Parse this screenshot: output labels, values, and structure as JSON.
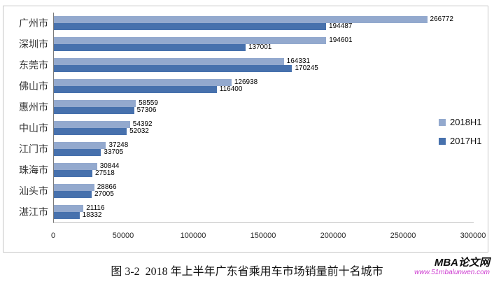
{
  "chart_data": {
    "type": "bar",
    "orientation": "horizontal",
    "categories": [
      "广州市",
      "深圳市",
      "东莞市",
      "佛山市",
      "惠州市",
      "中山市",
      "江门市",
      "珠海市",
      "汕头市",
      "湛江市"
    ],
    "series": [
      {
        "name": "2018H1",
        "color": "#93A9CE",
        "values": [
          266772,
          194601,
          164331,
          126938,
          58559,
          54392,
          37248,
          30844,
          28866,
          21116
        ]
      },
      {
        "name": "2017H1",
        "color": "#4771AD",
        "values": [
          194487,
          137001,
          170245,
          116400,
          57306,
          52032,
          33705,
          27518,
          27005,
          18332
        ]
      }
    ],
    "xlim": [
      0,
      300000
    ],
    "x_ticks": [
      "0",
      "50000",
      "100000",
      "150000",
      "200000",
      "250000",
      "300000"
    ],
    "legend_position": "right",
    "grid": false,
    "value_labels": true
  },
  "caption": "图 3-2  2018 年上半年广东省乘用车市场销量前十名城市",
  "watermark": {
    "brand": "MBA论文网",
    "url": "www.51mbalunwen.com",
    "url_color": "#cd3bd0"
  }
}
